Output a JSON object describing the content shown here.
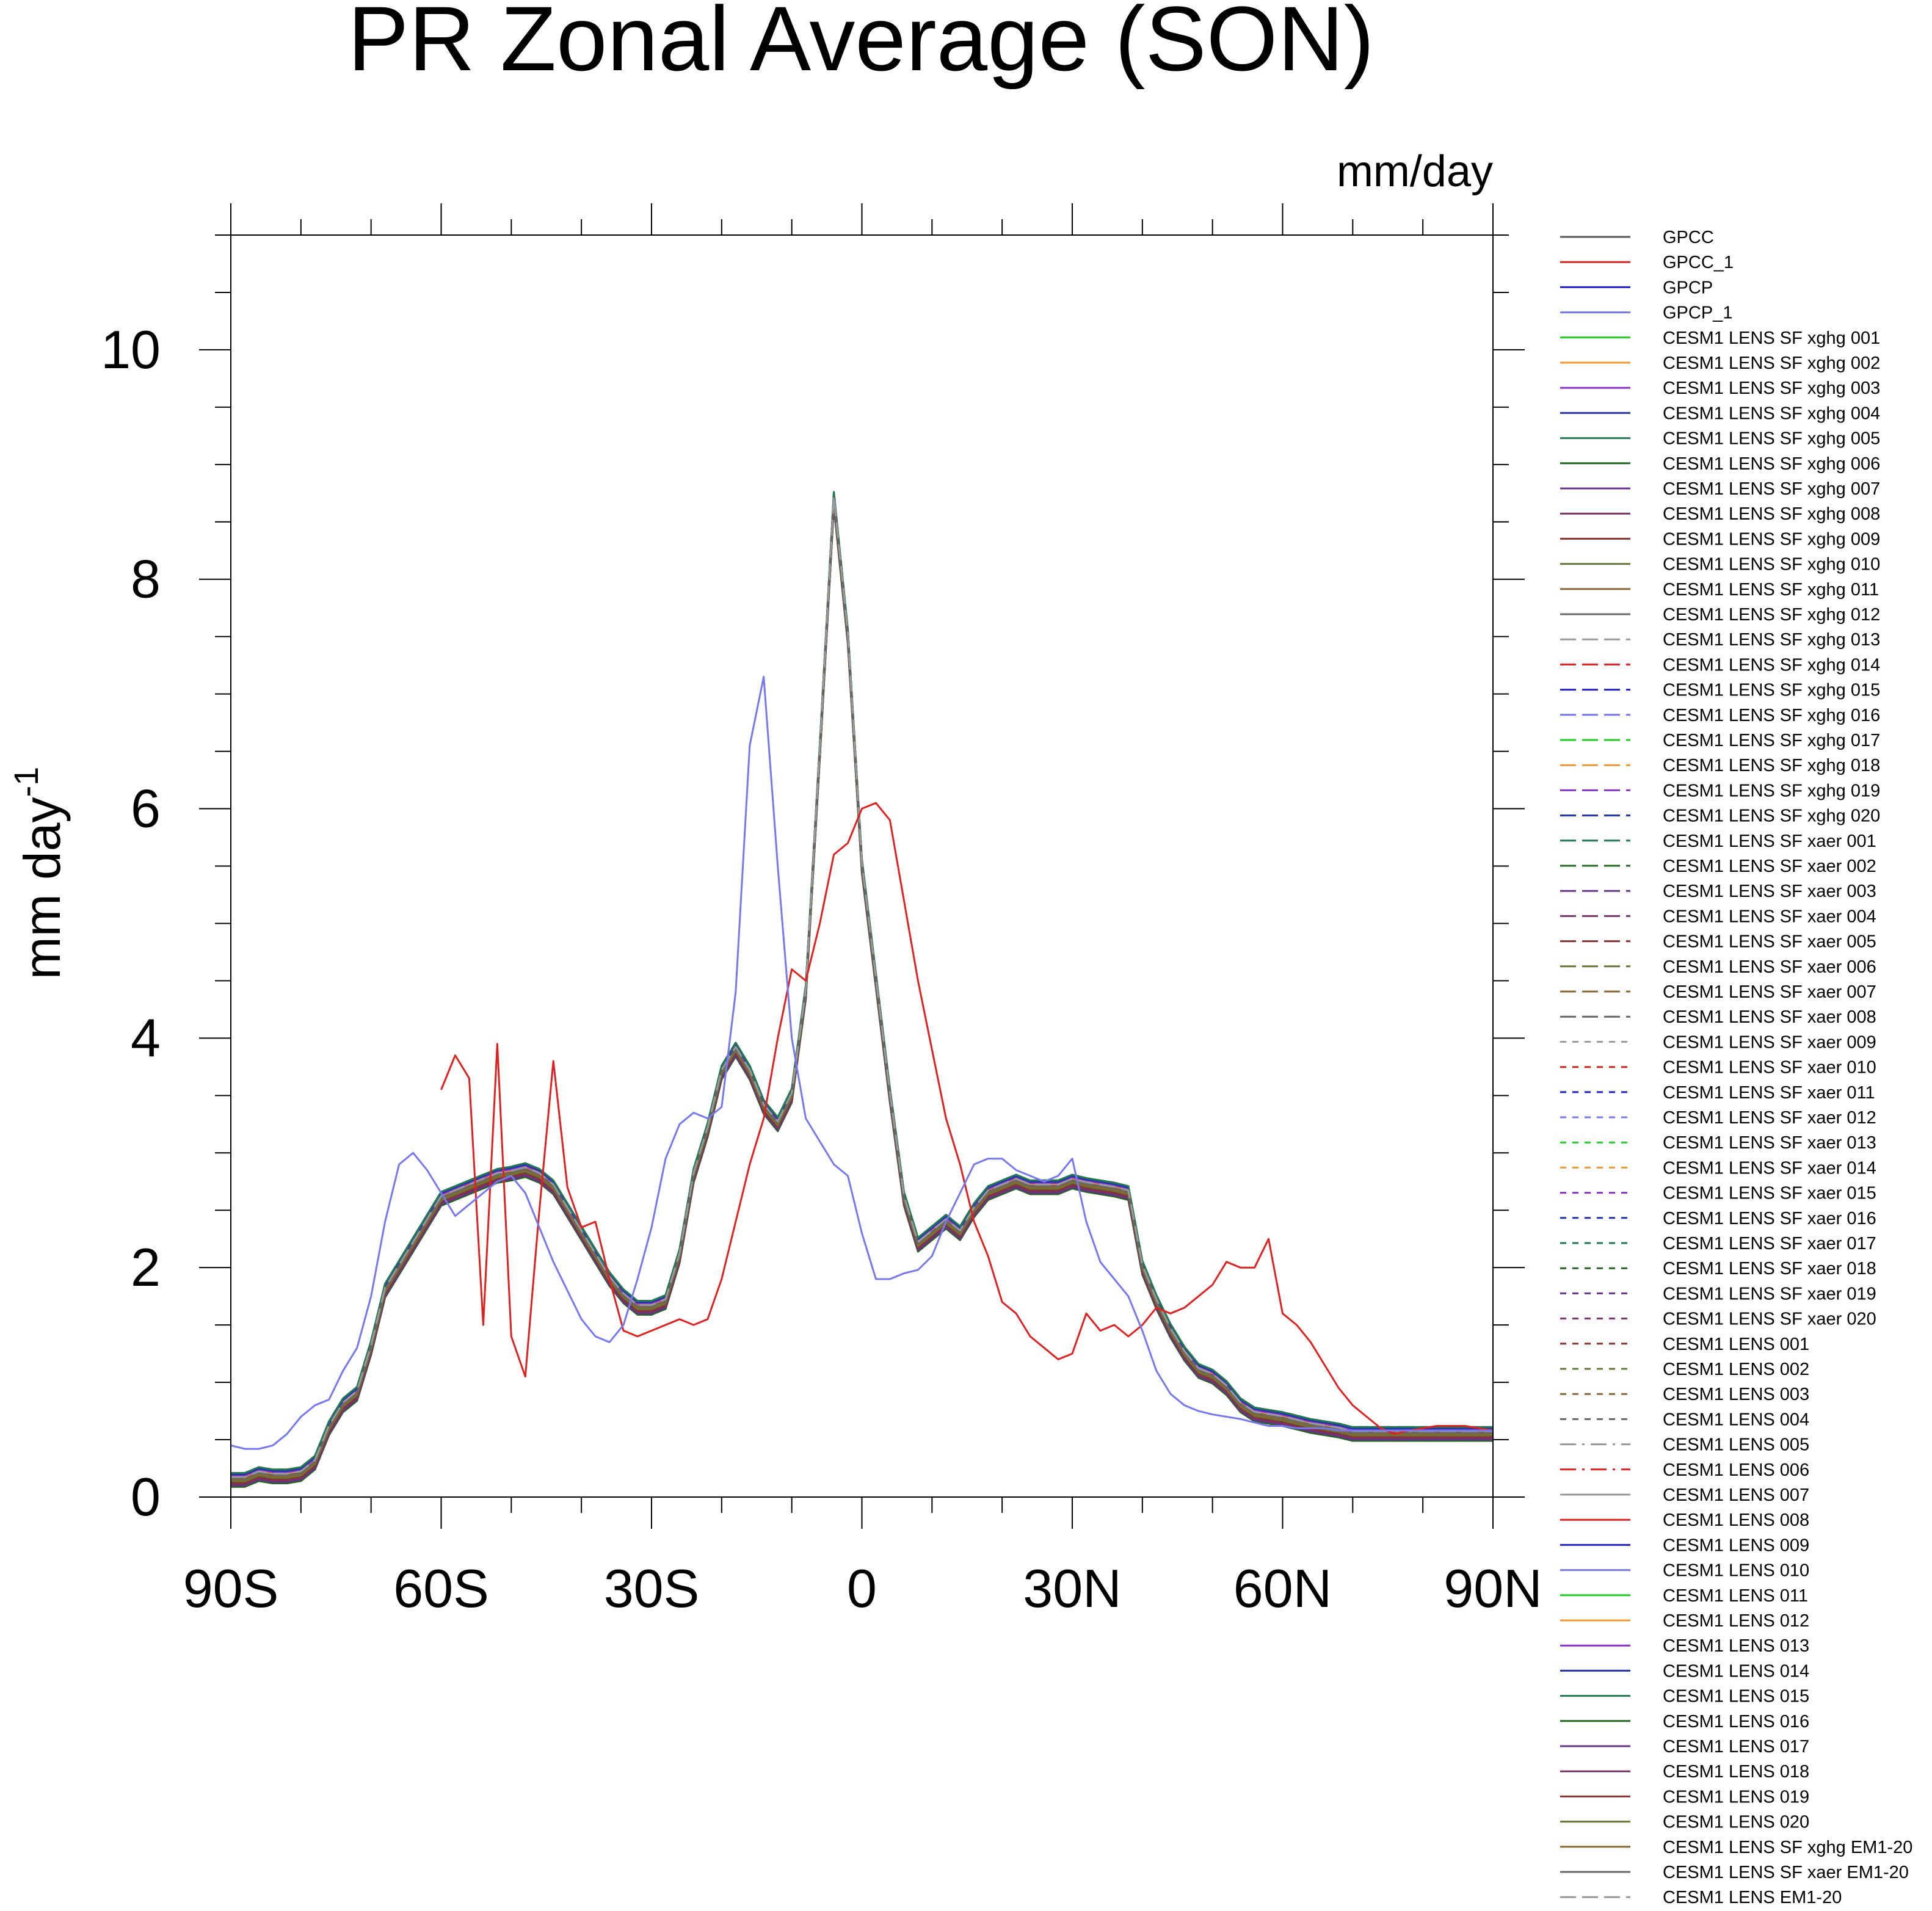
{
  "chart_data": {
    "type": "line",
    "title": "PR Zonal Average (SON)",
    "units_label": "mm/day",
    "ylabel": "mm day",
    "ylabel_superscript": "-1",
    "xlim": [
      -90,
      90
    ],
    "ylim": [
      0,
      11
    ],
    "x_ticks": [
      {
        "value": -90,
        "label": "90S"
      },
      {
        "value": -60,
        "label": "60S"
      },
      {
        "value": -30,
        "label": "30S"
      },
      {
        "value": 0,
        "label": "0"
      },
      {
        "value": 30,
        "label": "30N"
      },
      {
        "value": 60,
        "label": "60N"
      },
      {
        "value": 90,
        "label": "90N"
      }
    ],
    "y_ticks": [
      {
        "value": 0,
        "label": "0"
      },
      {
        "value": 2,
        "label": "2"
      },
      {
        "value": 4,
        "label": "4"
      },
      {
        "value": 6,
        "label": "6"
      },
      {
        "value": 8,
        "label": "8"
      },
      {
        "value": 10,
        "label": "10"
      }
    ],
    "x_minor_step": 10,
    "y_minor_step": 0.5,
    "observations": {
      "x": [
        -90,
        -88,
        -86,
        -84,
        -82,
        -80,
        -78,
        -76,
        -74,
        -72,
        -70,
        -68,
        -66,
        -64,
        -62,
        -60,
        -58,
        -56,
        -54,
        -52,
        -50,
        -48,
        -46,
        -44,
        -42,
        -40,
        -38,
        -36,
        -34,
        -32,
        -30,
        -28,
        -26,
        -24,
        -22,
        -20,
        -18,
        -16,
        -14,
        -12,
        -10,
        -8,
        -6,
        -4,
        -2,
        0,
        2,
        4,
        6,
        8,
        10,
        12,
        14,
        16,
        18,
        20,
        22,
        24,
        26,
        28,
        30,
        32,
        34,
        36,
        38,
        40,
        42,
        44,
        46,
        48,
        50,
        52,
        54,
        56,
        58,
        60,
        62,
        64,
        66,
        68,
        70,
        72,
        74,
        76,
        78,
        80,
        82,
        84,
        86,
        88,
        90
      ],
      "series": [
        {
          "name": "GPCC",
          "color": "#555555",
          "dash": "",
          "values": [
            null,
            null,
            null,
            null,
            null,
            null,
            null,
            null,
            null,
            null,
            null,
            null,
            null,
            null,
            null,
            null,
            null,
            null,
            null,
            null,
            null,
            null,
            null,
            null,
            null,
            null,
            null,
            null,
            null,
            null,
            null,
            null,
            null,
            null,
            null,
            null,
            null,
            null,
            null,
            null,
            null,
            null,
            null,
            null,
            null,
            null,
            null,
            null,
            null,
            null,
            null,
            null,
            null,
            null,
            null,
            null,
            null,
            null,
            null,
            null,
            null,
            null,
            null,
            null,
            null,
            null,
            null,
            null,
            null,
            null,
            null,
            null,
            null,
            null,
            null,
            null,
            null,
            null,
            null,
            null,
            null,
            null,
            null,
            null,
            null,
            null,
            null,
            null,
            null,
            null,
            null
          ]
        },
        {
          "name": "GPCC_1",
          "color": "#dd2222",
          "dash": "",
          "values": [
            null,
            null,
            null,
            null,
            null,
            null,
            null,
            null,
            null,
            null,
            null,
            null,
            null,
            null,
            null,
            3.55,
            3.85,
            3.65,
            1.5,
            3.95,
            1.4,
            1.05,
            2.5,
            3.8,
            2.7,
            2.35,
            2.4,
            1.9,
            1.45,
            1.4,
            1.45,
            1.5,
            1.55,
            1.5,
            1.55,
            1.9,
            2.4,
            2.9,
            3.3,
            4.0,
            4.6,
            4.5,
            5.0,
            5.6,
            5.7,
            6.0,
            6.05,
            5.9,
            5.2,
            4.5,
            3.9,
            3.3,
            2.9,
            2.4,
            2.1,
            1.7,
            1.6,
            1.4,
            1.3,
            1.2,
            1.25,
            1.6,
            1.45,
            1.5,
            1.4,
            1.5,
            1.65,
            1.6,
            1.65,
            1.75,
            1.85,
            2.05,
            2.0,
            2.0,
            2.25,
            1.6,
            1.5,
            1.35,
            1.15,
            0.95,
            0.8,
            0.7,
            0.6,
            0.55,
            0.58,
            0.6,
            0.62,
            0.62,
            0.62,
            0.6,
            0.58
          ]
        },
        {
          "name": "GPCP",
          "color": "#2222cc",
          "dash": "",
          "values": [
            null,
            null,
            null,
            null,
            null,
            null,
            null,
            null,
            null,
            null,
            null,
            null,
            null,
            null,
            null,
            null,
            null,
            null,
            null,
            null,
            null,
            null,
            null,
            null,
            null,
            null,
            null,
            null,
            null,
            null,
            null,
            null,
            null,
            null,
            null,
            null,
            null,
            null,
            null,
            null,
            null,
            null,
            null,
            null,
            null,
            null,
            null,
            null,
            null,
            null,
            null,
            null,
            null,
            null,
            null,
            null,
            null,
            null,
            null,
            null,
            null,
            null,
            null,
            null,
            null,
            null,
            null,
            null,
            null,
            null,
            null,
            null,
            null,
            null,
            null,
            null,
            null,
            null,
            null,
            null,
            null,
            null,
            null,
            null,
            null,
            null,
            null,
            null,
            null,
            null,
            null
          ]
        },
        {
          "name": "GPCP_1",
          "color": "#7777ee",
          "dash": "",
          "values": [
            0.45,
            0.42,
            0.42,
            0.45,
            0.55,
            0.7,
            0.8,
            0.85,
            1.1,
            1.3,
            1.75,
            2.4,
            2.9,
            3.0,
            2.85,
            2.65,
            2.45,
            2.55,
            2.65,
            2.75,
            2.8,
            2.65,
            2.35,
            2.05,
            1.8,
            1.55,
            1.4,
            1.35,
            1.5,
            1.9,
            2.35,
            2.95,
            3.25,
            3.35,
            3.3,
            3.4,
            4.4,
            6.55,
            7.15,
            5.5,
            4.0,
            3.3,
            3.1,
            2.9,
            2.8,
            2.3,
            1.9,
            1.9,
            1.95,
            1.98,
            2.1,
            2.4,
            2.65,
            2.9,
            2.95,
            2.95,
            2.85,
            2.8,
            2.75,
            2.8,
            2.95,
            2.4,
            2.05,
            1.9,
            1.75,
            1.45,
            1.1,
            0.9,
            0.8,
            0.75,
            0.72,
            0.7,
            0.68,
            0.65,
            0.62,
            0.62,
            0.6,
            0.6,
            0.6,
            0.58,
            0.58,
            0.58,
            0.58,
            0.58,
            0.58,
            0.58,
            0.58,
            0.58,
            0.58,
            0.58,
            0.58
          ]
        }
      ]
    },
    "model_envelope": {
      "x": [
        -90,
        -88,
        -86,
        -84,
        -82,
        -80,
        -78,
        -76,
        -74,
        -72,
        -70,
        -68,
        -66,
        -64,
        -62,
        -60,
        -58,
        -56,
        -54,
        -52,
        -50,
        -48,
        -46,
        -44,
        -42,
        -40,
        -38,
        -36,
        -34,
        -32,
        -30,
        -28,
        -26,
        -24,
        -22,
        -20,
        -18,
        -16,
        -14,
        -12,
        -10,
        -8,
        -6,
        -4,
        -2,
        0,
        2,
        4,
        6,
        8,
        10,
        12,
        14,
        16,
        18,
        20,
        22,
        24,
        26,
        28,
        30,
        32,
        34,
        36,
        38,
        40,
        42,
        44,
        46,
        48,
        50,
        52,
        54,
        56,
        58,
        60,
        62,
        64,
        66,
        68,
        70,
        72,
        74,
        76,
        78,
        80,
        82,
        84,
        86,
        88,
        90
      ],
      "values": [
        0.15,
        0.15,
        0.2,
        0.18,
        0.18,
        0.2,
        0.3,
        0.6,
        0.8,
        0.9,
        1.3,
        1.8,
        2.0,
        2.2,
        2.4,
        2.6,
        2.65,
        2.7,
        2.75,
        2.8,
        2.82,
        2.85,
        2.8,
        2.7,
        2.5,
        2.3,
        2.1,
        1.9,
        1.75,
        1.65,
        1.65,
        1.7,
        2.1,
        2.8,
        3.2,
        3.7,
        3.9,
        3.7,
        3.4,
        3.25,
        3.5,
        4.4,
        6.5,
        8.7,
        7.5,
        5.5,
        4.5,
        3.5,
        2.6,
        2.2,
        2.3,
        2.4,
        2.3,
        2.5,
        2.65,
        2.7,
        2.75,
        2.7,
        2.7,
        2.7,
        2.75,
        2.72,
        2.7,
        2.68,
        2.65,
        2.0,
        1.7,
        1.45,
        1.25,
        1.1,
        1.05,
        0.95,
        0.8,
        0.72,
        0.7,
        0.68,
        0.65,
        0.62,
        0.6,
        0.58,
        0.55,
        0.55,
        0.55,
        0.55,
        0.55,
        0.55,
        0.55,
        0.55,
        0.55,
        0.55,
        0.55
      ]
    },
    "legend": [
      {
        "label": "GPCC",
        "color": "#555555",
        "dash": ""
      },
      {
        "label": "GPCC_1",
        "color": "#dd2222",
        "dash": ""
      },
      {
        "label": "GPCP",
        "color": "#2222cc",
        "dash": ""
      },
      {
        "label": "GPCP_1",
        "color": "#7777ee",
        "dash": ""
      },
      {
        "label": "CESM1 LENS SF xghg 001",
        "color": "#22cc22",
        "dash": ""
      },
      {
        "label": "CESM1 LENS SF xghg 002",
        "color": "#ee9933",
        "dash": ""
      },
      {
        "label": "CESM1 LENS SF xghg 003",
        "color": "#8833cc",
        "dash": ""
      },
      {
        "label": "CESM1 LENS SF xghg 004",
        "color": "#2233aa",
        "dash": ""
      },
      {
        "label": "CESM1 LENS SF xghg 005",
        "color": "#227755",
        "dash": ""
      },
      {
        "label": "CESM1 LENS SF xghg 006",
        "color": "#226622",
        "dash": ""
      },
      {
        "label": "CESM1 LENS SF xghg 007",
        "color": "#663388",
        "dash": ""
      },
      {
        "label": "CESM1 LENS SF xghg 008",
        "color": "#773366",
        "dash": ""
      },
      {
        "label": "CESM1 LENS SF xghg 009",
        "color": "#883333",
        "dash": ""
      },
      {
        "label": "CESM1 LENS SF xghg 010",
        "color": "#667733",
        "dash": ""
      },
      {
        "label": "CESM1 LENS SF xghg 011",
        "color": "#886633",
        "dash": ""
      },
      {
        "label": "CESM1 LENS SF xghg 012",
        "color": "#666666",
        "dash": ""
      },
      {
        "label": "CESM1 LENS SF xghg 013",
        "color": "#999999",
        "dash": "26,10"
      },
      {
        "label": "CESM1 LENS SF xghg 014",
        "color": "#dd2222",
        "dash": "26,10"
      },
      {
        "label": "CESM1 LENS SF xghg 015",
        "color": "#2222cc",
        "dash": "26,10"
      },
      {
        "label": "CESM1 LENS SF xghg 016",
        "color": "#7777ee",
        "dash": "26,10"
      },
      {
        "label": "CESM1 LENS SF xghg 017",
        "color": "#22cc22",
        "dash": "26,10"
      },
      {
        "label": "CESM1 LENS SF xghg 018",
        "color": "#ee9933",
        "dash": "26,10"
      },
      {
        "label": "CESM1 LENS SF xghg 019",
        "color": "#8833cc",
        "dash": "26,10"
      },
      {
        "label": "CESM1 LENS SF xghg 020",
        "color": "#2233aa",
        "dash": "26,10"
      },
      {
        "label": "CESM1 LENS SF xaer 001",
        "color": "#227755",
        "dash": "26,10"
      },
      {
        "label": "CESM1 LENS SF xaer 002",
        "color": "#226622",
        "dash": "26,10"
      },
      {
        "label": "CESM1 LENS SF xaer 003",
        "color": "#663388",
        "dash": "26,10"
      },
      {
        "label": "CESM1 LENS SF xaer 004",
        "color": "#773366",
        "dash": "26,10"
      },
      {
        "label": "CESM1 LENS SF xaer 005",
        "color": "#883333",
        "dash": "26,10"
      },
      {
        "label": "CESM1 LENS SF xaer 006",
        "color": "#667733",
        "dash": "26,10"
      },
      {
        "label": "CESM1 LENS SF xaer 007",
        "color": "#886633",
        "dash": "26,10"
      },
      {
        "label": "CESM1 LENS SF xaer 008",
        "color": "#666666",
        "dash": "26,10"
      },
      {
        "label": "CESM1 LENS SF xaer 009",
        "color": "#999999",
        "dash": "10,10"
      },
      {
        "label": "CESM1 LENS SF xaer 010",
        "color": "#dd2222",
        "dash": "10,10"
      },
      {
        "label": "CESM1 LENS SF xaer 011",
        "color": "#2222cc",
        "dash": "10,10"
      },
      {
        "label": "CESM1 LENS SF xaer 012",
        "color": "#7777ee",
        "dash": "10,10"
      },
      {
        "label": "CESM1 LENS SF xaer 013",
        "color": "#22cc22",
        "dash": "10,10"
      },
      {
        "label": "CESM1 LENS SF xaer 014",
        "color": "#ee9933",
        "dash": "10,10"
      },
      {
        "label": "CESM1 LENS SF xaer 015",
        "color": "#8833cc",
        "dash": "10,10"
      },
      {
        "label": "CESM1 LENS SF xaer 016",
        "color": "#2233aa",
        "dash": "10,10"
      },
      {
        "label": "CESM1 LENS SF xaer 017",
        "color": "#227755",
        "dash": "10,10"
      },
      {
        "label": "CESM1 LENS SF xaer 018",
        "color": "#226622",
        "dash": "10,10"
      },
      {
        "label": "CESM1 LENS SF xaer 019",
        "color": "#663388",
        "dash": "10,10"
      },
      {
        "label": "CESM1 LENS SF xaer 020",
        "color": "#773366",
        "dash": "10,10"
      },
      {
        "label": "CESM1 LENS 001",
        "color": "#883333",
        "dash": "10,10"
      },
      {
        "label": "CESM1 LENS 002",
        "color": "#667733",
        "dash": "10,10"
      },
      {
        "label": "CESM1 LENS 003",
        "color": "#886633",
        "dash": "10,10"
      },
      {
        "label": "CESM1 LENS 004",
        "color": "#666666",
        "dash": "10,10"
      },
      {
        "label": "CESM1 LENS 005",
        "color": "#999999",
        "dash": "26,10,4,10"
      },
      {
        "label": "CESM1 LENS 006",
        "color": "#dd2222",
        "dash": "26,10,4,10"
      },
      {
        "label": "CESM1 LENS 007",
        "color": "#999999",
        "dash": ""
      },
      {
        "label": "CESM1 LENS 008",
        "color": "#dd2222",
        "dash": ""
      },
      {
        "label": "CESM1 LENS 009",
        "color": "#2222cc",
        "dash": ""
      },
      {
        "label": "CESM1 LENS 010",
        "color": "#7777ee",
        "dash": ""
      },
      {
        "label": "CESM1 LENS 011",
        "color": "#22cc22",
        "dash": ""
      },
      {
        "label": "CESM1 LENS 012",
        "color": "#ee9933",
        "dash": ""
      },
      {
        "label": "CESM1 LENS 013",
        "color": "#8833cc",
        "dash": ""
      },
      {
        "label": "CESM1 LENS 014",
        "color": "#2233aa",
        "dash": ""
      },
      {
        "label": "CESM1 LENS 015",
        "color": "#227755",
        "dash": ""
      },
      {
        "label": "CESM1 LENS 016",
        "color": "#226622",
        "dash": ""
      },
      {
        "label": "CESM1 LENS 017",
        "color": "#663388",
        "dash": ""
      },
      {
        "label": "CESM1 LENS 018",
        "color": "#773366",
        "dash": ""
      },
      {
        "label": "CESM1 LENS 019",
        "color": "#883333",
        "dash": ""
      },
      {
        "label": "CESM1 LENS 020",
        "color": "#667733",
        "dash": ""
      },
      {
        "label": "CESM1 LENS SF xghg EM1-20",
        "color": "#886633",
        "dash": ""
      },
      {
        "label": "CESM1 LENS SF xaer EM1-20",
        "color": "#666666",
        "dash": ""
      },
      {
        "label": "CESM1 LENS EM1-20",
        "color": "#999999",
        "dash": "26,10"
      }
    ]
  }
}
